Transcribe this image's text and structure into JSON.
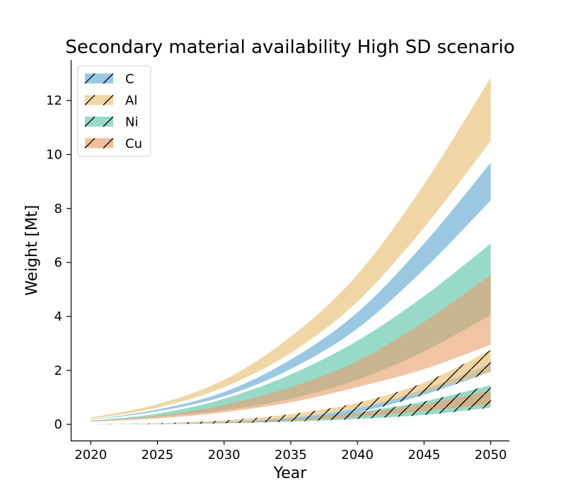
{
  "chart_data": {
    "type": "area",
    "title": "Secondary material availability High SD scenario",
    "xlabel": "Year",
    "ylabel": "Weight [Mt]",
    "xlim": [
      2018.5,
      2051.4
    ],
    "ylim": [
      -0.6,
      13.5
    ],
    "xticks": [
      2020,
      2025,
      2030,
      2035,
      2040,
      2045,
      2050
    ],
    "yticks": [
      0,
      2,
      4,
      6,
      8,
      10,
      12
    ],
    "grid": false,
    "legend_position": "top-left",
    "x": [
      2020,
      2025,
      2030,
      2035,
      2040,
      2045,
      2050
    ],
    "series": [
      {
        "name": "C",
        "color": "#6aaed6",
        "solid_band": {
          "lower": [
            0.16,
            0.48,
            1.04,
            2.05,
            3.55,
            5.75,
            8.3
          ],
          "upper": [
            0.17,
            0.55,
            1.2,
            2.4,
            4.15,
            6.7,
            9.7
          ]
        },
        "hatched_band": {
          "lower": [
            0.0,
            0.02,
            0.07,
            0.18,
            0.45,
            1.1,
            1.95
          ],
          "upper": [
            0.0,
            0.03,
            0.1,
            0.25,
            0.6,
            1.3,
            2.25
          ]
        }
      },
      {
        "name": "Al",
        "color": "#ebc27a",
        "solid_band": {
          "lower": [
            0.2,
            0.62,
            1.38,
            2.65,
            4.55,
            7.3,
            10.5
          ],
          "upper": [
            0.25,
            0.75,
            1.65,
            3.25,
            5.55,
            8.9,
            12.85
          ]
        },
        "hatched_band": {
          "lower": [
            0.0,
            0.03,
            0.1,
            0.25,
            0.6,
            1.2,
            1.95
          ],
          "upper": [
            0.0,
            0.04,
            0.15,
            0.38,
            0.8,
            1.55,
            2.75
          ]
        }
      },
      {
        "name": "Ni",
        "color": "#66c9b0",
        "solid_band": {
          "lower": [
            0.1,
            0.28,
            0.52,
            0.95,
            1.65,
            2.7,
            4.05
          ],
          "upper": [
            0.13,
            0.4,
            0.95,
            1.85,
            3.1,
            4.75,
            6.7
          ]
        },
        "hatched_band": {
          "lower": [
            0.0,
            0.01,
            0.04,
            0.1,
            0.2,
            0.35,
            0.62
          ],
          "upper": [
            0.0,
            0.02,
            0.08,
            0.2,
            0.45,
            0.85,
            1.45
          ]
        }
      },
      {
        "name": "Cu",
        "color": "#e9a06e",
        "solid_band": {
          "lower": [
            0.1,
            0.22,
            0.45,
            0.82,
            1.38,
            2.05,
            2.95
          ],
          "upper": [
            0.12,
            0.32,
            0.72,
            1.38,
            2.35,
            3.8,
            5.55
          ]
        },
        "hatched_band": {
          "lower": [
            0.0,
            0.01,
            0.05,
            0.13,
            0.28,
            0.5,
            0.75
          ],
          "upper": [
            0.0,
            0.02,
            0.08,
            0.2,
            0.42,
            0.75,
            1.25
          ]
        }
      }
    ]
  }
}
